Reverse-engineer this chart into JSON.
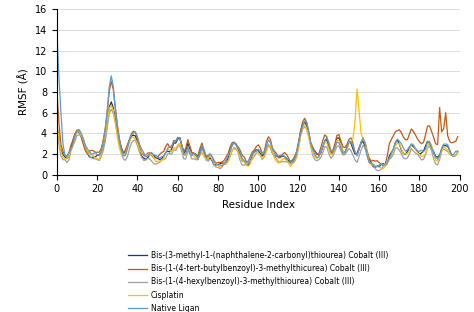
{
  "title": "",
  "xlabel": "Residue Index",
  "ylabel": "RMSF (Å)",
  "xlim": [
    0,
    200
  ],
  "ylim": [
    0,
    16
  ],
  "yticks": [
    0,
    2,
    4,
    6,
    8,
    10,
    12,
    14,
    16
  ],
  "xticks": [
    0,
    20,
    40,
    60,
    80,
    100,
    120,
    140,
    160,
    180,
    200
  ],
  "colors": {
    "dark_blue": "#1f3864",
    "orange": "#c55a11",
    "gray": "#a0a0a0",
    "yellow": "#ffc000",
    "light_blue": "#5b9bd5"
  },
  "legend_labels": [
    "Bis-(3-methyl-1-(naphthalene-2-carbonyl)thiourea) Cobalt (III)",
    "Bis-(1-(4-tert-butylbenzoyl)-3-methylthicurea) Cobalt (III)",
    "Bis-(1-(4-hexylbenzoyl)-3-methylthiourea) Cobalt (III)",
    "Cisplatin",
    "Native Ligan"
  ],
  "figsize": [
    4.74,
    3.12
  ],
  "dpi": 100
}
